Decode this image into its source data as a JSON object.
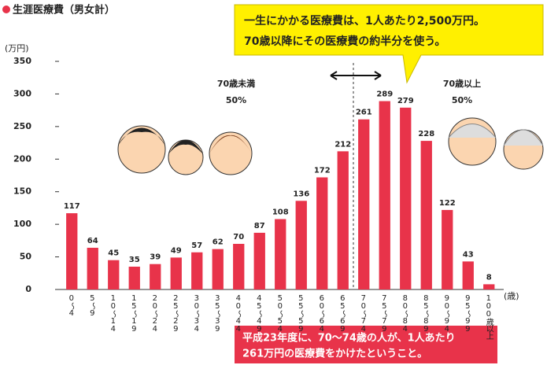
{
  "chart_data": {
    "type": "bar",
    "title": "生涯医療費（男女計）",
    "y_label": "(万円)",
    "x_label": "(歳)",
    "categories": [
      "0〜4",
      "5〜9",
      "10〜14",
      "15〜19",
      "20〜24",
      "25〜29",
      "30〜34",
      "35〜39",
      "40〜44",
      "45〜49",
      "50〜54",
      "55〜59",
      "60〜64",
      "65〜69",
      "70〜74",
      "75〜79",
      "80〜84",
      "85〜89",
      "90〜94",
      "95〜99",
      "100歳以上"
    ],
    "values": [
      117,
      64,
      45,
      35,
      39,
      49,
      57,
      62,
      70,
      87,
      108,
      136,
      172,
      212,
      261,
      289,
      279,
      228,
      122,
      43,
      8
    ],
    "color": "#e8334a",
    "ylim": [
      0,
      350
    ],
    "yticks": [
      0,
      50,
      100,
      150,
      200,
      250,
      300,
      350
    ],
    "grid": false,
    "callout": [
      "一生にかかる医療費は、1人あたり2,500万円。",
      "70歳以降にその医療費の約半分を使う。"
    ],
    "under70": {
      "label": "70歳未満",
      "share": "50%"
    },
    "over70": {
      "label": "70歳以上",
      "share": "50%"
    },
    "note": [
      "平成23年度に、70〜74歳の人が、1人あたり",
      "261万円の医療費をかけたということ。"
    ]
  }
}
